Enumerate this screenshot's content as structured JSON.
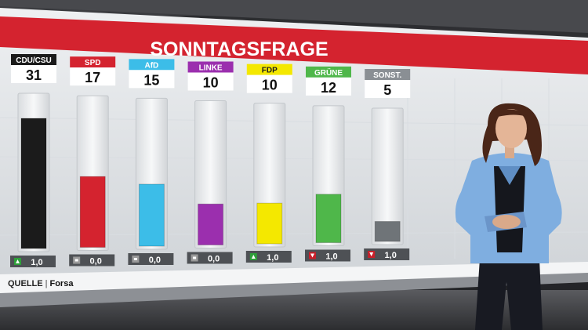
{
  "title": "SONNTAGSFRAGE",
  "source": {
    "label": "QUELLE",
    "value": "Forsa"
  },
  "colors": {
    "banner": "#d4232f",
    "up": "#2e9f3a",
    "down": "#c8202a",
    "neutral": "#9a9a9a"
  },
  "chart_data": {
    "type": "bar",
    "title": "SONNTAGSFRAGE",
    "categories": [
      "CDU/CSU",
      "SPD",
      "AfD",
      "LINKE",
      "FDP",
      "GRÜNE",
      "SONST."
    ],
    "values": [
      31,
      17,
      15,
      10,
      10,
      12,
      5
    ],
    "colors": [
      "#1b1b1b",
      "#d4232f",
      "#3cbde8",
      "#9b2fae",
      "#f4e800",
      "#4fb74a",
      "#6f7478"
    ],
    "label_colors": [
      "#1b1b1b",
      "#d4232f",
      "#3cbde8",
      "#9b2fae",
      "#f4e800",
      "#4fb74a",
      "#8a8f94"
    ],
    "label_text_colors": [
      "#ffffff",
      "#ffffff",
      "#ffffff",
      "#ffffff",
      "#1b1b1b",
      "#ffffff",
      "#ffffff"
    ],
    "changes": [
      {
        "direction": "up",
        "value": "1,0"
      },
      {
        "direction": "neutral",
        "value": "0,0"
      },
      {
        "direction": "neutral",
        "value": "0,0"
      },
      {
        "direction": "neutral",
        "value": "0,0"
      },
      {
        "direction": "up",
        "value": "1,0"
      },
      {
        "direction": "down",
        "value": "1,0"
      },
      {
        "direction": "down",
        "value": "1,0"
      }
    ],
    "ylim": [
      0,
      31
    ]
  }
}
